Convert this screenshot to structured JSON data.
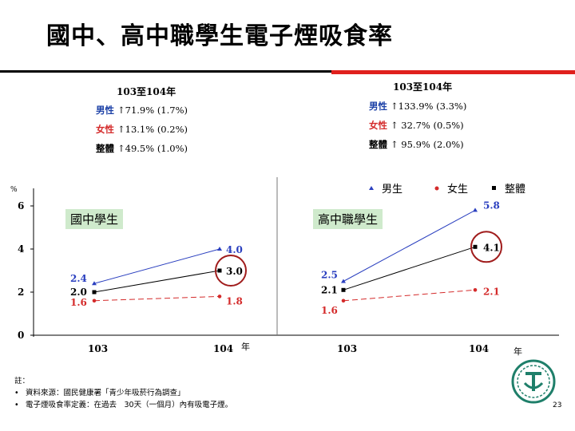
{
  "title": "國中、高中職學生電子煙吸食率",
  "summary_left": {
    "heading": "103至104年",
    "lines": [
      {
        "label": "男性",
        "text": "↑71.9% (1.7%)"
      },
      {
        "label": "女性",
        "text": "↑13.1% (0.2%)"
      },
      {
        "label": "整體",
        "text": "↑49.5% (1.0%)"
      }
    ]
  },
  "summary_right": {
    "heading": "103至104年",
    "lines": [
      {
        "label": "男性",
        "text": "↑133.9% (3.3%)"
      },
      {
        "label": "女性",
        "text": "↑ 32.7% (0.5%)"
      },
      {
        "label": "整體",
        "text": "↑ 95.9% (2.0%)"
      }
    ]
  },
  "colors": {
    "male": "#2a3fbf",
    "female": "#d42b2b",
    "total": "#000000",
    "circle": "#a01c1c",
    "panel": "#cfeacc"
  },
  "legend": [
    "男生",
    "女生",
    "整體"
  ],
  "chart_data": [
    {
      "type": "line",
      "panel_label": "國中學生",
      "x": [
        "103",
        "104"
      ],
      "xlabel": "年",
      "ylabel": "%",
      "ylim": [
        0,
        6
      ],
      "yticks": [
        "0",
        "2",
        "4",
        "6"
      ],
      "series": [
        {
          "name": "男生",
          "values": [
            2.4,
            4.0
          ],
          "labels": [
            "2.4",
            "4.0"
          ]
        },
        {
          "name": "女生",
          "values": [
            1.6,
            1.8
          ],
          "labels": [
            "1.6",
            "1.8"
          ]
        },
        {
          "name": "整體",
          "values": [
            2.0,
            3.0
          ],
          "labels": [
            "2.0",
            "3.0"
          ]
        }
      ]
    },
    {
      "type": "line",
      "panel_label": "高中職學生",
      "x": [
        "103",
        "104"
      ],
      "xlabel": "年",
      "ylim": [
        0,
        6
      ],
      "series": [
        {
          "name": "男生",
          "values": [
            2.5,
            5.8
          ],
          "labels": [
            "2.5",
            "5.8"
          ]
        },
        {
          "name": "女生",
          "values": [
            1.6,
            2.1
          ],
          "labels": [
            "1.6",
            "2.1"
          ]
        },
        {
          "name": "整體",
          "values": [
            2.1,
            4.1
          ],
          "labels": [
            "2.1",
            "4.1"
          ]
        }
      ]
    }
  ],
  "notes": {
    "heading": "註：",
    "items": [
      "資料來源：國民健康署「青少年吸菸行為調查」",
      "電子煙吸食率定義：在過去　30天（一個月）內有吸電子煙。"
    ]
  },
  "page_number": "23"
}
